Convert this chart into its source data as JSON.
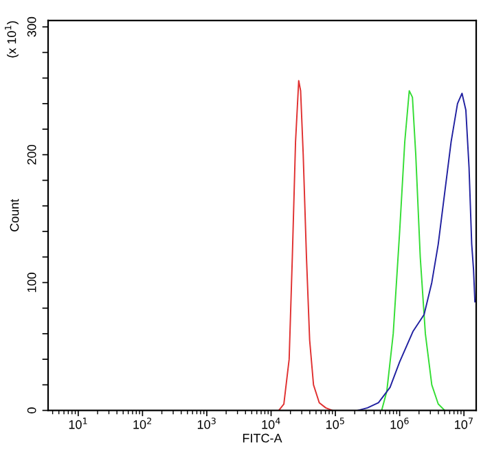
{
  "chart_data": {
    "type": "line",
    "xlabel": "FITC-A",
    "ylabel": "Count",
    "annotations": [
      "(x 10$^{1}$)"
    ],
    "log": "x",
    "xlim": [
      3.4,
      15500000.0
    ],
    "xticks": [
      {
        "value": 10,
        "label": "10$^{1}$"
      },
      {
        "value": 100,
        "label": "10$^{2}$"
      },
      {
        "value": 1000,
        "label": "10$^{3}$"
      },
      {
        "value": 10000,
        "label": "10$^{4}$"
      },
      {
        "value": 100000,
        "label": "10$^{5}$"
      },
      {
        "value": 1000000,
        "label": "10$^{6}$"
      },
      {
        "value": 10000000,
        "label": "10$^{7}$"
      }
    ],
    "ylim": [
      0,
      305
    ],
    "yticks": [
      0,
      {
        "value": 20,
        "label": null
      },
      {
        "value": 40,
        "label": null
      },
      {
        "value": 60,
        "label": null
      },
      {
        "value": 80,
        "label": null
      },
      100,
      {
        "value": 120,
        "label": null
      },
      {
        "value": 140,
        "label": null
      },
      {
        "value": 160,
        "label": null
      },
      {
        "value": 180,
        "label": null
      },
      200,
      {
        "value": 220,
        "label": null
      },
      {
        "value": 240,
        "label": null
      },
      {
        "value": 260,
        "label": null
      },
      {
        "value": 280,
        "label": null
      },
      300
    ],
    "grid": false,
    "marker": "none",
    "line_style": "solid",
    "series": [
      {
        "color": "#e03030",
        "x": [
          13200.0,
          15800.0,
          19100.0,
          21400.0,
          24000.0,
          26900.0,
          28800.0,
          31600.0,
          35500.0,
          39800.0,
          45700.0,
          56200.0,
          70800.0,
          89100.0
        ],
        "values": [
          0,
          5,
          40,
          120,
          210,
          258,
          250,
          200,
          120,
          55,
          20,
          6,
          2,
          0
        ]
      },
      {
        "color": "#33dd33",
        "x": [
          525000.0,
          631000.0,
          794000.0,
          1000000.0,
          1200000.0,
          1410000.0,
          1580000.0,
          1780000.0,
          2090000.0,
          2510000.0,
          3160000.0,
          3980000.0,
          5010000.0
        ],
        "values": [
          0,
          15,
          60,
          140,
          210,
          250,
          245,
          200,
          120,
          60,
          20,
          5,
          0
        ]
      },
      {
        "color": "#2020a0",
        "x": [
          224000.0,
          316000.0,
          468000.0,
          708000.0,
          1000000.0,
          1620000.0,
          2400000.0,
          3160000.0,
          3980000.0,
          5010000.0,
          6310000.0,
          7940000.0,
          9330000.0,
          10700000.0,
          12000000.0,
          13200000.0,
          14100000.0,
          14800000.0
        ],
        "values": [
          0,
          2,
          6,
          18,
          38,
          62,
          75,
          100,
          130,
          170,
          210,
          240,
          248,
          235,
          190,
          130,
          110,
          85
        ]
      }
    ]
  }
}
